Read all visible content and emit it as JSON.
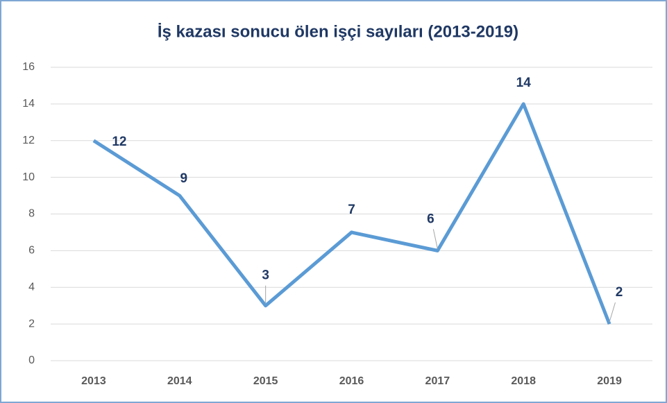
{
  "chart_data": {
    "type": "line",
    "title": "İş kazası sonucu ölen işçi sayıları (2013-2019)",
    "categories": [
      "2013",
      "2014",
      "2015",
      "2016",
      "2017",
      "2018",
      "2019"
    ],
    "values": [
      12,
      9,
      3,
      7,
      6,
      14,
      2
    ],
    "color": "#5b9bd5",
    "ylim": [
      0,
      16
    ],
    "yticks": [
      0,
      2,
      4,
      6,
      8,
      10,
      12,
      14,
      16
    ],
    "grid": true
  }
}
